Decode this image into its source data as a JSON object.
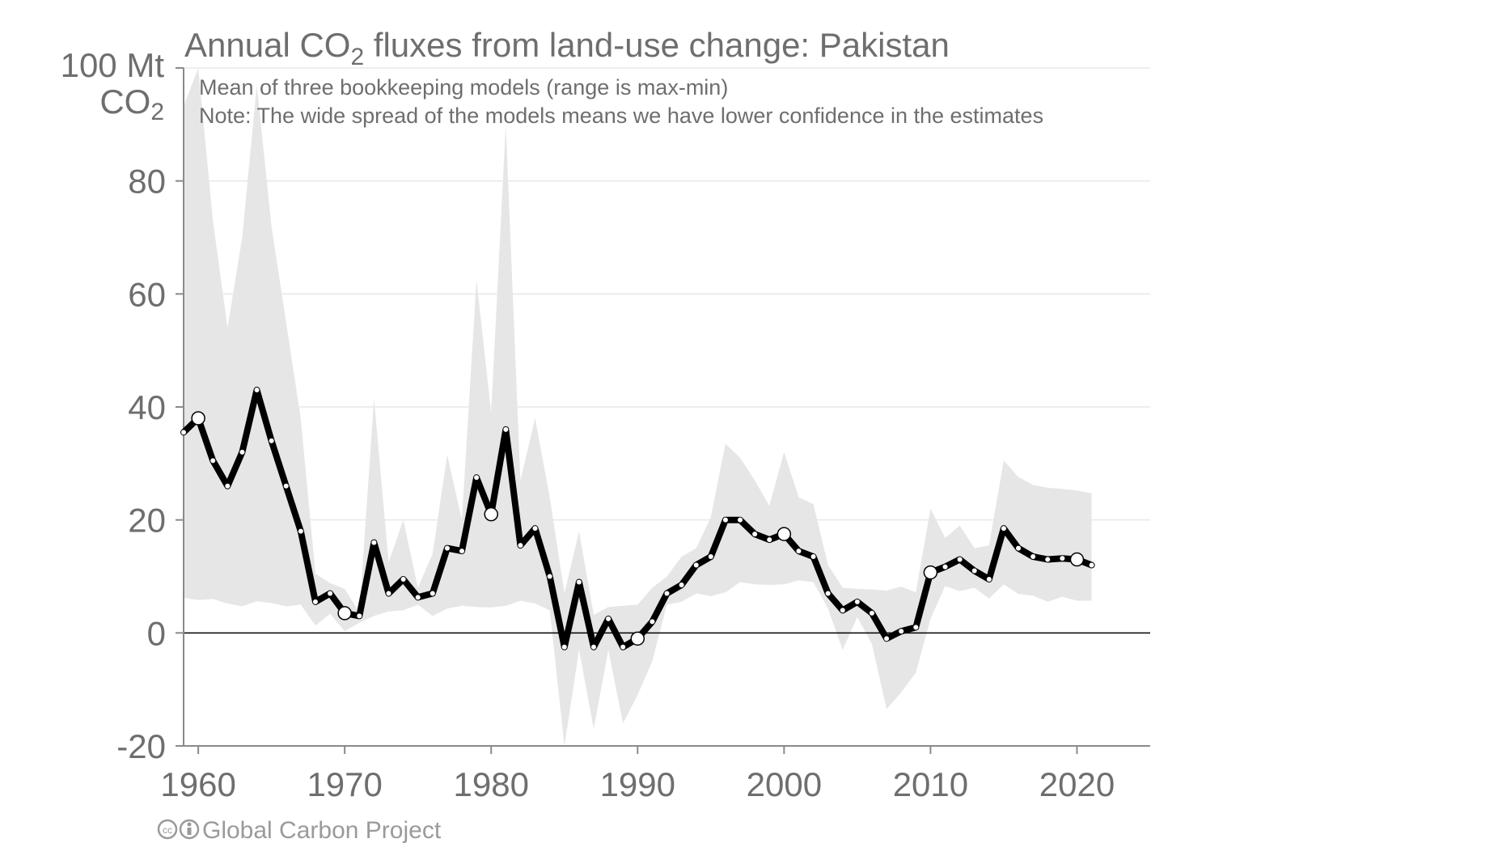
{
  "chart_data": {
    "type": "line",
    "title_main": "Annual CO",
    "title_sub": "2",
    "title_rest": " fluxes from land-use change: Pakistan",
    "subtitle_lines": [
      "Mean of three bookkeeping models (range is max-min)",
      "Note: The wide spread of the models means we have lower confidence in the estimates"
    ],
    "ylabel_line1": "100 Mt",
    "ylabel_line2_main": "CO",
    "ylabel_line2_sub": "2",
    "credit": "Global Carbon Project",
    "xlim": [
      1959,
      2025
    ],
    "ylim": [
      -20,
      100
    ],
    "x_ticks": [
      1960,
      1970,
      1980,
      1990,
      2000,
      2010,
      2020
    ],
    "y_ticks": [
      -20,
      0,
      20,
      40,
      60,
      80
    ],
    "grid": true,
    "colors": {
      "line": "#000000",
      "band": "#e6e6e6",
      "grid": "#e8e8e8",
      "axis": "#8a8a8a",
      "text": "#6e6e6e"
    },
    "x": [
      1959,
      1960,
      1961,
      1962,
      1963,
      1964,
      1965,
      1966,
      1967,
      1968,
      1969,
      1970,
      1971,
      1972,
      1973,
      1974,
      1975,
      1976,
      1977,
      1978,
      1979,
      1980,
      1981,
      1982,
      1983,
      1984,
      1985,
      1986,
      1987,
      1988,
      1989,
      1990,
      1991,
      1992,
      1993,
      1994,
      1995,
      1996,
      1997,
      1998,
      1999,
      2000,
      2001,
      2002,
      2003,
      2004,
      2005,
      2006,
      2007,
      2008,
      2009,
      2010,
      2011,
      2012,
      2013,
      2014,
      2015,
      2016,
      2017,
      2018,
      2019,
      2020,
      2021
    ],
    "series": [
      {
        "name": "Mean",
        "values": [
          35.5,
          38,
          30.5,
          26,
          32,
          43,
          34,
          26,
          18,
          5.5,
          7,
          3.5,
          3,
          16,
          7,
          9.5,
          6.3,
          7,
          15,
          14.5,
          27.5,
          21,
          36,
          15.5,
          18.5,
          10,
          -2.5,
          9,
          -2.5,
          2.5,
          -2.5,
          -1,
          2,
          7,
          8.5,
          12,
          13.5,
          20,
          20,
          17.5,
          16.5,
          17.5,
          14.5,
          13.5,
          7,
          4,
          5.5,
          3.5,
          -1,
          0.3,
          1,
          10.7,
          11.7,
          13,
          11,
          9.5,
          18.5,
          15,
          13.5,
          13,
          13.2,
          13,
          12
        ],
        "min": [
          6.2,
          5.8,
          6,
          5.2,
          4.7,
          5.6,
          5.3,
          4.7,
          5,
          1.3,
          3.4,
          0.3,
          1.8,
          3,
          3.8,
          4,
          5,
          3,
          4.3,
          4.8,
          4.6,
          4.5,
          4.8,
          5.7,
          5.2,
          4,
          -20,
          -3,
          -17,
          -3,
          -16,
          -11,
          -5,
          5,
          5.5,
          7,
          6.5,
          7.2,
          9,
          8.6,
          8.5,
          8.6,
          9.3,
          9,
          4.3,
          -3,
          2.8,
          -2,
          -13.5,
          -10.5,
          -7,
          2.5,
          8.3,
          7.4,
          8,
          6.1,
          8.6,
          6.9,
          6.6,
          5.5,
          6.4,
          5.7,
          5.7
        ],
        "max": [
          93.2,
          100,
          73,
          54,
          70,
          97,
          72,
          55,
          38,
          10.5,
          8.8,
          7.8,
          3.6,
          41.5,
          12.5,
          20,
          8,
          14,
          31.5,
          20,
          62.5,
          39,
          90,
          27,
          38,
          24,
          7,
          18,
          3.2,
          4.6,
          4.8,
          5,
          8,
          10,
          13.5,
          15,
          20.5,
          33.5,
          31,
          27,
          22.5,
          32,
          24,
          22.8,
          12,
          8,
          7.8,
          7.7,
          7.5,
          8.2,
          7.2,
          22,
          16.8,
          19,
          15,
          15.5,
          30.5,
          27.6,
          26.2,
          25.7,
          25.5,
          25.2,
          24.7
        ]
      }
    ],
    "highlight_years": [
      1960,
      1970,
      1980,
      1990,
      2000,
      2010,
      2020
    ]
  }
}
